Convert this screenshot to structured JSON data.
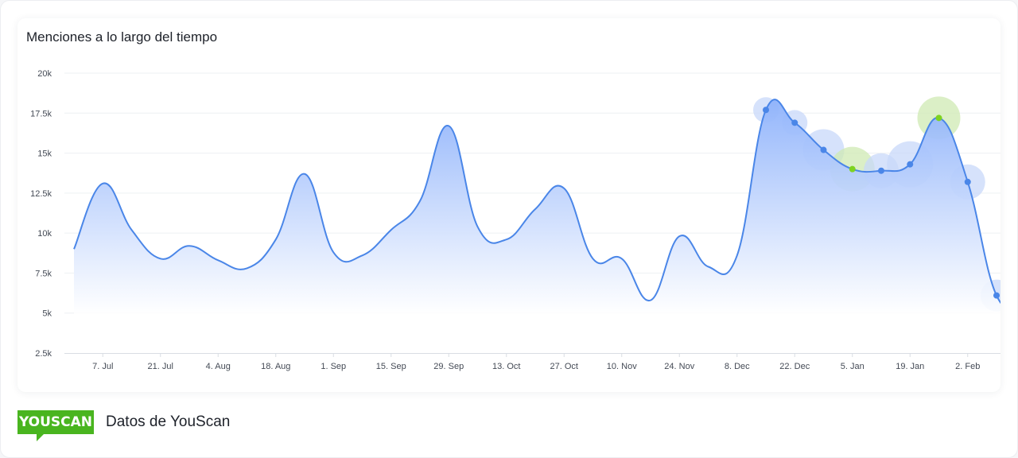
{
  "title": "Menciones a lo largo del tiempo",
  "footer": {
    "logo_text": "YOUSCAN",
    "source_text": "Datos de YouScan"
  },
  "colors": {
    "line": "#4a86e8",
    "fill_top": "#8eb2fb",
    "marker": "#4a86e8",
    "highlight": "#7ed321",
    "bubble": "#c8d8fa",
    "bubble_highlight": "#cfeab3",
    "brand": "#49b51f"
  },
  "chart_data": {
    "type": "area",
    "title": "Menciones a lo largo del tiempo",
    "xlabel": "",
    "ylabel": "",
    "y_ticks": [
      "2.5k",
      "5k",
      "7.5k",
      "10k",
      "12.5k",
      "15k",
      "17.5k",
      "20k"
    ],
    "y_tick_values": [
      2500,
      5000,
      7500,
      10000,
      12500,
      15000,
      17500,
      20000
    ],
    "ylim": [
      2500,
      20000
    ],
    "x_ticks": [
      "7. Jul",
      "21. Jul",
      "4. Aug",
      "18. Aug",
      "1. Sep",
      "15. Sep",
      "29. Sep",
      "13. Oct",
      "27. Oct",
      "10. Nov",
      "24. Nov",
      "8. Dec",
      "22. Dec",
      "5. Jan",
      "19. Jan",
      "2. Feb"
    ],
    "x_tick_weeks": [
      1,
      3,
      5,
      7,
      9,
      11,
      13,
      15,
      17,
      19,
      21,
      23,
      25,
      27,
      29,
      31
    ],
    "grid": true,
    "series": [
      {
        "weeks": [
          0,
          1,
          2,
          3,
          4,
          5,
          6,
          7,
          8,
          9,
          10,
          11,
          12,
          13,
          14,
          15,
          16,
          17,
          18,
          19,
          20,
          21,
          22,
          23,
          24,
          25,
          26,
          27,
          28,
          29,
          30,
          31,
          32,
          33
        ],
        "values": [
          9000,
          13100,
          10200,
          8400,
          9200,
          8300,
          7800,
          9600,
          13700,
          8800,
          8600,
          10200,
          12000,
          16700,
          10400,
          9600,
          11500,
          12800,
          8400,
          8400,
          5800,
          9800,
          7900,
          8600,
          17700,
          16900,
          15200,
          14000,
          13900,
          14300,
          17200,
          13200,
          6100,
          5400
        ],
        "markers": [
          {
            "week": 24,
            "value": 17700,
            "highlight": false,
            "bubble": 16
          },
          {
            "week": 25,
            "value": 16900,
            "highlight": false,
            "bubble": 16
          },
          {
            "week": 26,
            "value": 15200,
            "highlight": false,
            "bubble": 26
          },
          {
            "week": 27,
            "value": 14000,
            "highlight": true,
            "bubble": 28
          },
          {
            "week": 28,
            "value": 13900,
            "highlight": false,
            "bubble": 22
          },
          {
            "week": 29,
            "value": 14300,
            "highlight": false,
            "bubble": 29
          },
          {
            "week": 30,
            "value": 17200,
            "highlight": true,
            "bubble": 27
          },
          {
            "week": 31,
            "value": 13200,
            "highlight": false,
            "bubble": 22
          },
          {
            "week": 32,
            "value": 6100,
            "highlight": false,
            "bubble": 20
          }
        ]
      }
    ]
  }
}
